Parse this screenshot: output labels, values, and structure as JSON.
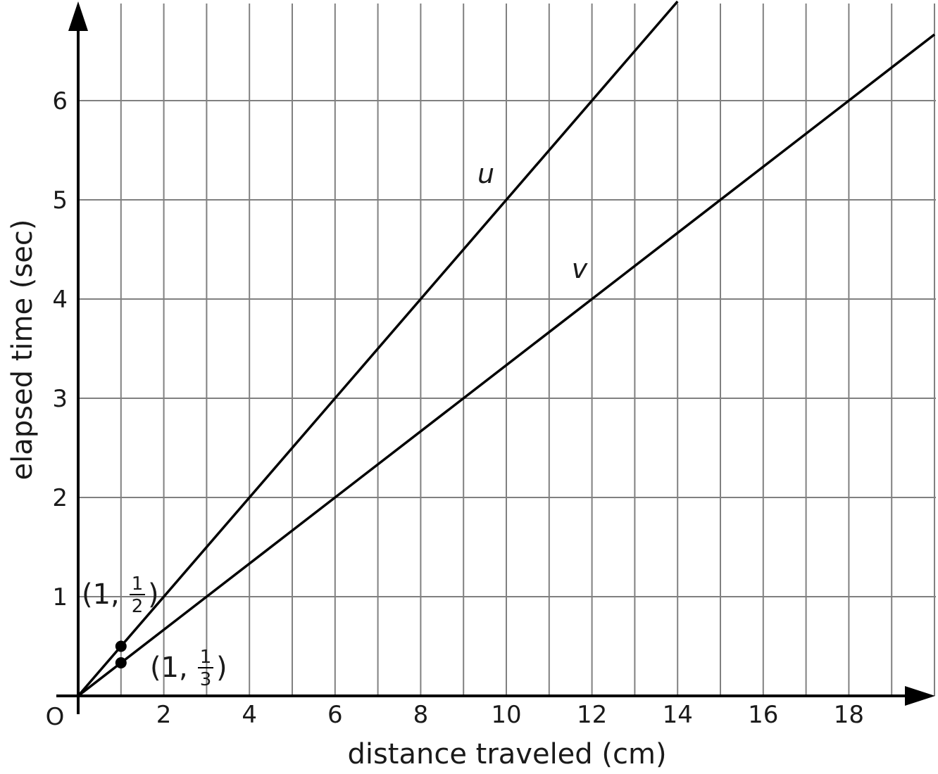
{
  "chart_data": {
    "type": "line",
    "title": "",
    "xlabel": "distance traveled (cm)",
    "ylabel": "elapsed time (sec)",
    "xlim": [
      0,
      20
    ],
    "ylim": [
      0,
      7
    ],
    "grid": true,
    "origin_label": "O",
    "x_ticks": [
      2,
      4,
      6,
      8,
      10,
      12,
      14,
      16,
      18
    ],
    "y_ticks": [
      1,
      2,
      3,
      4,
      5,
      6
    ],
    "series": [
      {
        "name": "u",
        "slope": 0.5,
        "x": [
          0,
          14
        ],
        "y": [
          0,
          7
        ]
      },
      {
        "name": "v",
        "slope": 0.3333,
        "x": [
          0,
          20
        ],
        "y": [
          0,
          6.667
        ]
      }
    ],
    "points": [
      {
        "x": 1,
        "y": 0.5,
        "label_whole": "1",
        "label_num": "1",
        "label_den": "2"
      },
      {
        "x": 1,
        "y": 0.3333,
        "label_whole": "1",
        "label_num": "1",
        "label_den": "3"
      }
    ],
    "colors": {
      "line": "#000000",
      "grid": "#808080"
    }
  }
}
